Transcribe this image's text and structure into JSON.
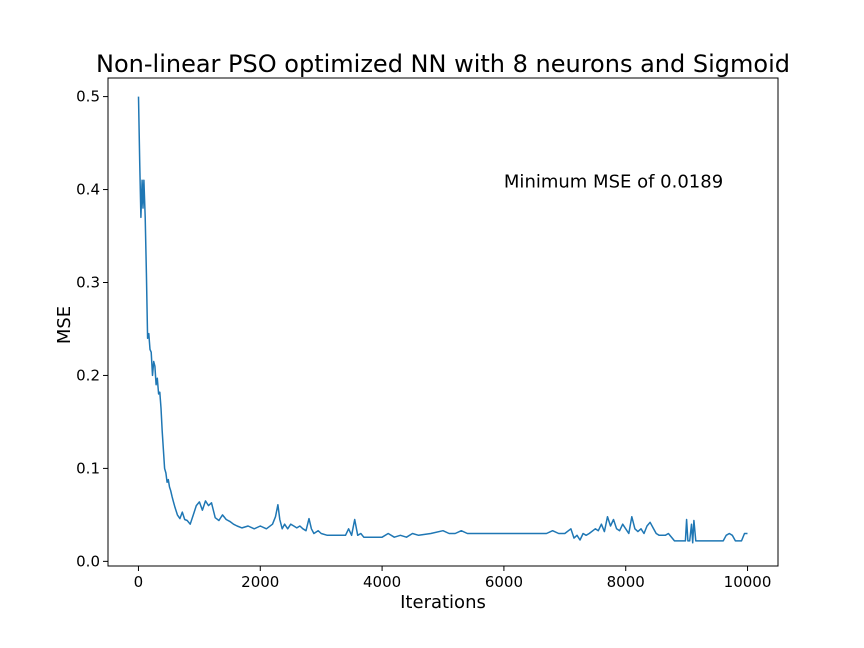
{
  "chart_data": {
    "type": "line",
    "title": "Non-linear PSO optimized NN with 8 neurons and Sigmoid",
    "xlabel": "Iterations",
    "ylabel": "MSE",
    "xlim": [
      -500,
      10500
    ],
    "ylim": [
      -0.005,
      0.52
    ],
    "xticks": [
      0,
      2000,
      4000,
      6000,
      8000,
      10000
    ],
    "xtick_labels": [
      "0",
      "2000",
      "4000",
      "6000",
      "8000",
      "10000"
    ],
    "yticks": [
      0.0,
      0.1,
      0.2,
      0.3,
      0.4,
      0.5
    ],
    "ytick_labels": [
      "0.0",
      "0.1",
      "0.2",
      "0.3",
      "0.4",
      "0.5"
    ],
    "grid": false,
    "annotation": {
      "text": "Minimum MSE of 0.0189",
      "x": 6000,
      "y": 0.402
    },
    "series": [
      {
        "color": "#1f77b4",
        "x": [
          0,
          20,
          40,
          60,
          75,
          90,
          110,
          130,
          150,
          170,
          190,
          210,
          230,
          250,
          270,
          290,
          310,
          330,
          350,
          370,
          390,
          410,
          430,
          450,
          470,
          490,
          510,
          530,
          550,
          570,
          600,
          640,
          680,
          720,
          760,
          800,
          850,
          900,
          950,
          1000,
          1050,
          1100,
          1150,
          1200,
          1260,
          1320,
          1380,
          1440,
          1500,
          1560,
          1620,
          1700,
          1800,
          1900,
          2000,
          2100,
          2200,
          2250,
          2290,
          2320,
          2360,
          2400,
          2450,
          2500,
          2550,
          2600,
          2650,
          2700,
          2750,
          2800,
          2840,
          2880,
          2950,
          3000,
          3100,
          3200,
          3300,
          3400,
          3450,
          3500,
          3550,
          3600,
          3650,
          3700,
          3800,
          4000,
          4100,
          4200,
          4300,
          4400,
          4500,
          4600,
          4800,
          5000,
          5100,
          5200,
          5300,
          5400,
          5500,
          5700,
          5900,
          6100,
          6300,
          6500,
          6700,
          6800,
          6900,
          7000,
          7100,
          7150,
          7200,
          7250,
          7300,
          7350,
          7400,
          7500,
          7550,
          7600,
          7650,
          7700,
          7750,
          7800,
          7850,
          7900,
          7950,
          8000,
          8050,
          8100,
          8150,
          8200,
          8250,
          8300,
          8350,
          8400,
          8450,
          8500,
          8550,
          8600,
          8650,
          8700,
          8800,
          8900,
          8950,
          8980,
          9000,
          9020,
          9050,
          9080,
          9100,
          9120,
          9150,
          9180,
          9200,
          9300,
          9400,
          9500,
          9600,
          9650,
          9700,
          9750,
          9800,
          9850,
          9900,
          9950,
          10000
        ],
        "y": [
          0.5,
          0.43,
          0.37,
          0.41,
          0.38,
          0.41,
          0.37,
          0.31,
          0.24,
          0.245,
          0.228,
          0.225,
          0.2,
          0.215,
          0.21,
          0.19,
          0.197,
          0.18,
          0.182,
          0.165,
          0.14,
          0.12,
          0.1,
          0.095,
          0.085,
          0.088,
          0.08,
          0.076,
          0.07,
          0.065,
          0.058,
          0.05,
          0.046,
          0.053,
          0.045,
          0.044,
          0.04,
          0.05,
          0.06,
          0.064,
          0.055,
          0.065,
          0.06,
          0.063,
          0.047,
          0.044,
          0.05,
          0.045,
          0.043,
          0.04,
          0.038,
          0.036,
          0.038,
          0.035,
          0.038,
          0.035,
          0.04,
          0.048,
          0.061,
          0.045,
          0.035,
          0.04,
          0.035,
          0.04,
          0.038,
          0.036,
          0.038,
          0.035,
          0.033,
          0.046,
          0.035,
          0.03,
          0.033,
          0.03,
          0.028,
          0.028,
          0.028,
          0.028,
          0.035,
          0.028,
          0.045,
          0.028,
          0.03,
          0.026,
          0.026,
          0.026,
          0.03,
          0.026,
          0.028,
          0.026,
          0.03,
          0.028,
          0.03,
          0.033,
          0.03,
          0.03,
          0.033,
          0.03,
          0.03,
          0.03,
          0.03,
          0.03,
          0.03,
          0.03,
          0.03,
          0.033,
          0.03,
          0.03,
          0.035,
          0.025,
          0.028,
          0.023,
          0.03,
          0.028,
          0.03,
          0.035,
          0.033,
          0.04,
          0.032,
          0.048,
          0.038,
          0.045,
          0.035,
          0.033,
          0.04,
          0.035,
          0.03,
          0.048,
          0.035,
          0.032,
          0.035,
          0.03,
          0.038,
          0.042,
          0.036,
          0.03,
          0.028,
          0.028,
          0.028,
          0.03,
          0.022,
          0.022,
          0.022,
          0.022,
          0.045,
          0.022,
          0.022,
          0.04,
          0.02,
          0.044,
          0.022,
          0.022,
          0.022,
          0.022,
          0.022,
          0.022,
          0.022,
          0.028,
          0.03,
          0.028,
          0.022,
          0.022,
          0.022,
          0.03,
          0.03
        ]
      }
    ]
  }
}
